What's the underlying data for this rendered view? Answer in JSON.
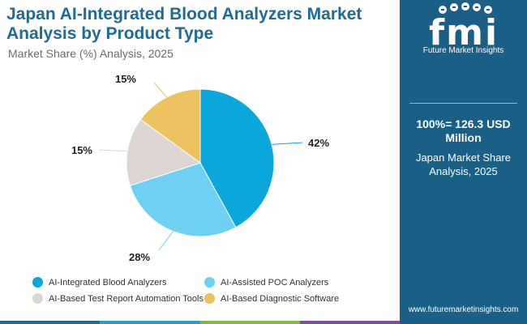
{
  "header": {
    "title": "Japan AI-Integrated Blood Analyzers Market Analysis by Product Type",
    "subtitle": "Market Share (%) Analysis, 2025"
  },
  "sidebar": {
    "brand_mark": "fmi",
    "brand_name": "Future Market Insights",
    "total_label": "100%= 126.3 USD Million",
    "share_note": "Japan Market Share Analysis, 2025",
    "website": "www.futuremarketinsights.com"
  },
  "colors": {
    "brand_blue": "#1a5f86",
    "title_blue": "#1f6b93",
    "bar": [
      "#1f6b93",
      "#27a0c9",
      "#84b83a",
      "#7c4d9e"
    ]
  },
  "chart_data": {
    "type": "pie",
    "title": "Market Share (%) Analysis, 2025",
    "categories": [
      "AI-Integrated Blood Analyzers",
      "AI-Assisted POC Analyzers",
      "AI-Based Test Report Automation Tools",
      "AI-Based Diagnostic Software"
    ],
    "values": [
      42,
      28,
      15,
      15
    ],
    "labels": [
      "42%",
      "28%",
      "15%",
      "15%"
    ],
    "colors": [
      "#0aa6dc",
      "#6ed0f2",
      "#dcd5d1",
      "#ecc35f"
    ],
    "legend_position": "bottom"
  }
}
